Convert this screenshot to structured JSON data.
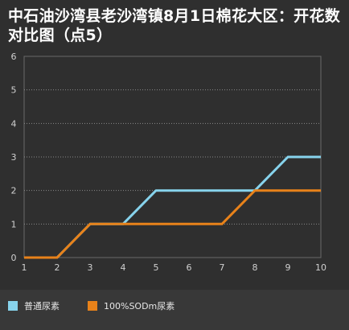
{
  "chart_data": {
    "type": "line",
    "title": "中石油沙湾县老沙湾镇8月1日棉花大区：开花数对比图（点5）",
    "x": [
      1,
      2,
      3,
      4,
      5,
      6,
      7,
      8,
      9,
      10
    ],
    "ylim": [
      0,
      6
    ],
    "yticks": [
      0,
      1,
      2,
      3,
      4,
      5,
      6
    ],
    "grid": true,
    "legend_position": "bottom",
    "series": [
      {
        "name": "普通尿素",
        "color": "#87d3ec",
        "values": [
          0,
          0,
          1,
          1,
          2,
          2,
          2,
          2,
          3,
          3
        ]
      },
      {
        "name": "100%SODm尿素",
        "color": "#e8821a",
        "values": [
          0,
          0,
          1,
          1,
          1,
          1,
          1,
          2,
          2,
          2
        ]
      }
    ]
  }
}
